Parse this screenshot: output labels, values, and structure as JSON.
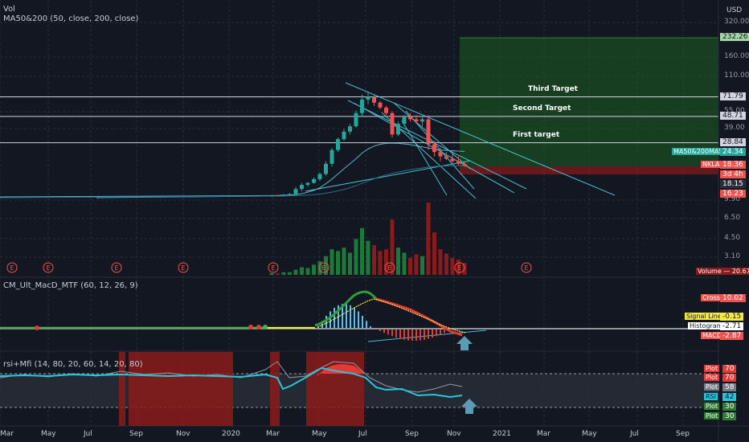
{
  "header": {
    "vol_label": "Vol",
    "ma_label": "MA50&200 (50, close, 200, close)",
    "currency": "USD"
  },
  "x_axis": {
    "ticks": [
      "Mar",
      "May",
      "Jul",
      "Sep",
      "Nov",
      "2020",
      "Mar",
      "May",
      "Jul",
      "Sep",
      "Nov",
      "2021",
      "Mar",
      "May",
      "Jul",
      "Sep"
    ]
  },
  "price_axis": {
    "ticks": [
      "320.00",
      "160.00",
      "110.00",
      "55.00",
      "39.00",
      "9.90",
      "6.50",
      "4.50",
      "3.10"
    ]
  },
  "targets": [
    {
      "label": "Third Target",
      "value": "71.79"
    },
    {
      "label": "Second Target",
      "value": "48.71"
    },
    {
      "label": "First target",
      "value": "28.84"
    }
  ],
  "top_value_tag": "232.26",
  "price_tags": [
    {
      "text": "MA50&200MA50",
      "value": "24.34",
      "color": "#26a69a"
    },
    {
      "text": "NKLA",
      "value": "18.36",
      "color": "#ef5350"
    },
    {
      "text": "",
      "value": "3d 4h",
      "color": "#ef5350"
    },
    {
      "text": "",
      "value": "18.15",
      "color": "#2a2e39"
    },
    {
      "text": "",
      "value": "16.23",
      "color": "#ef5350"
    }
  ],
  "volume_tag": {
    "text": "Volume",
    "value": "20.671M"
  },
  "earnings_marker": "E",
  "macd": {
    "title": "CM_Ult_MacD_MTF (60, 12, 26, 9)",
    "tags": [
      {
        "label": "Cross",
        "value": "10.02",
        "color": "#ef5350"
      },
      {
        "label": "Signal Line",
        "value": "-0.15",
        "color": "#f5e94a"
      },
      {
        "label": "Histogram",
        "value": "-2.71",
        "color": "#ffffff"
      },
      {
        "label": "MACD",
        "value": "-2.87",
        "color": "#ef5350"
      }
    ]
  },
  "rsi": {
    "title": "rsi+Mfi (14, 80, 20, 60, 14, 20, 80)",
    "tags": [
      {
        "label": "Plot",
        "value": "70",
        "color": "#e53935"
      },
      {
        "label": "Plot",
        "value": "70",
        "color": "#e53935"
      },
      {
        "label": "Plot",
        "value": "58",
        "color": "#787b86"
      },
      {
        "label": "RSI",
        "value": "42",
        "color": "#26c6da"
      },
      {
        "label": "Plot",
        "value": "30",
        "color": "#2e7d32"
      },
      {
        "label": "Plot",
        "value": "30",
        "color": "#2e7d32"
      }
    ]
  },
  "chart_data": {
    "type": "candlestick",
    "symbol": "NKLA",
    "scale": "log",
    "candles": [
      [
        10.1,
        10.2,
        10.0,
        10.1
      ],
      [
        10.2,
        10.3,
        10.0,
        10.1
      ],
      [
        10.2,
        10.4,
        10.1,
        10.3
      ],
      [
        10.3,
        10.6,
        10.2,
        10.4
      ],
      [
        10.4,
        12.0,
        10.3,
        11.5
      ],
      [
        11.5,
        13.0,
        11.0,
        12.5
      ],
      [
        12.5,
        13.2,
        12.0,
        13.0
      ],
      [
        13.0,
        14.5,
        12.8,
        14.0
      ],
      [
        14.0,
        16.0,
        13.5,
        15.5
      ],
      [
        15.5,
        20.0,
        15.0,
        19.0
      ],
      [
        19.0,
        26.0,
        18.0,
        25.0
      ],
      [
        25.0,
        32.0,
        24.0,
        31.0
      ],
      [
        31.0,
        38.0,
        30.0,
        36.0
      ],
      [
        36.0,
        42.0,
        34.0,
        40.0
      ],
      [
        40.0,
        55.0,
        39.0,
        52.0
      ],
      [
        52.0,
        75.0,
        48.0,
        68.0
      ],
      [
        68.0,
        80.0,
        62.0,
        72.0
      ],
      [
        72.0,
        74.0,
        60.0,
        64.0
      ],
      [
        64.0,
        66.0,
        56.0,
        58.0
      ],
      [
        58.0,
        60.0,
        50.0,
        52.0
      ],
      [
        52.0,
        54.0,
        32.0,
        34.0
      ],
      [
        34.0,
        44.0,
        33.0,
        42.0
      ],
      [
        42.0,
        50.0,
        40.0,
        48.0
      ],
      [
        48.0,
        52.0,
        44.0,
        46.0
      ],
      [
        46.0,
        50.0,
        42.0,
        44.0
      ],
      [
        44.0,
        48.0,
        40.0,
        46.0
      ],
      [
        46.0,
        50.0,
        25.0,
        28.0
      ],
      [
        28.0,
        30.0,
        22.0,
        24.0
      ],
      [
        24.0,
        26.0,
        20.0,
        22.0
      ],
      [
        22.0,
        24.0,
        20.5,
        21.0
      ],
      [
        21.0,
        23.0,
        19.5,
        20.0
      ],
      [
        20.0,
        22.0,
        18.5,
        19.0
      ],
      [
        19.0,
        20.0,
        17.8,
        18.36
      ]
    ],
    "volume": [
      0.2,
      0.2,
      0.3,
      0.3,
      0.6,
      0.9,
      0.8,
      1.2,
      1.6,
      2.2,
      3.0,
      2.8,
      3.2,
      2.6,
      4.2,
      5.5,
      4.0,
      3.5,
      2.8,
      3.0,
      6.5,
      3.2,
      2.6,
      2.0,
      2.4,
      2.2,
      8.5,
      5.0,
      3.0,
      2.5,
      2.0,
      1.8,
      1.4
    ],
    "ma50": [
      10.1,
      10.1,
      10.2,
      10.2,
      10.3,
      10.5,
      10.8,
      11.2,
      11.8,
      12.8,
      14.0,
      15.5,
      17.2,
      19.0,
      21.0,
      23.5,
      25.5,
      27.0,
      28.0,
      28.5,
      28.6,
      28.5,
      28.2,
      27.8,
      27.2,
      26.6,
      26.0,
      25.5,
      25.0,
      24.8,
      24.6,
      24.4,
      24.34
    ],
    "ma200": [
      10.0,
      10.0,
      10.0,
      10.05,
      10.1,
      10.15,
      10.2,
      10.3,
      10.4,
      10.6,
      10.8,
      11.1,
      11.4,
      11.8,
      12.3,
      12.9,
      13.5,
      14.1,
      14.7,
      15.2,
      15.7,
      16.1,
      16.5,
      16.9,
      17.2,
      17.5,
      17.8,
      18.0,
      18.1,
      18.2,
      18.25,
      18.3,
      18.35
    ]
  }
}
